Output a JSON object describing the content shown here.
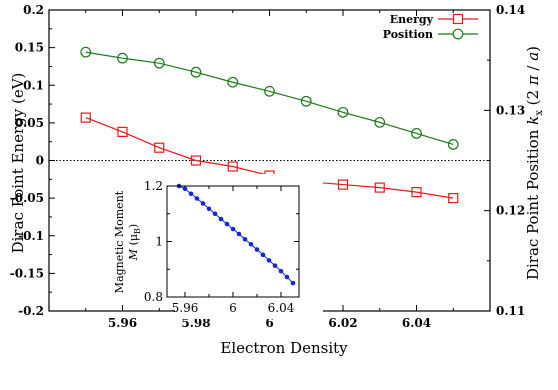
{
  "chart_data": [
    {
      "type": "line",
      "xlabel": "Electron Density",
      "ylabel": "Dirac Point Energy (eV)",
      "ylabel_right": "Dirac Point Position k_x (2 π / a)",
      "xlim": [
        5.94,
        6.06
      ],
      "ylim": [
        -0.2,
        0.2
      ],
      "ylim_right": [
        0.11,
        0.14
      ],
      "x_ticks": [
        "5.96",
        "5.98",
        "6",
        "6.02",
        "6.04"
      ],
      "y_ticks": [
        "0.2",
        "0.15",
        "0.1",
        "0.05",
        "0",
        "-0.05",
        "-0.1",
        "-0.15",
        "-0.2"
      ],
      "y_ticks_right": [
        "0.14",
        "0.13",
        "0.12",
        "0.11"
      ],
      "legend_position": "top-right",
      "zero_line": true,
      "x": [
        5.95,
        5.96,
        5.97,
        5.98,
        5.99,
        6.0,
        6.01,
        6.02,
        6.03,
        6.04,
        6.05
      ],
      "series": [
        {
          "name": "Energy",
          "axis": "left",
          "marker": "square",
          "color": "#e8191b",
          "values": [
            0.057,
            0.038,
            0.017,
            0.0,
            -0.008,
            -0.02,
            -0.028,
            -0.032,
            -0.036,
            -0.042,
            -0.05
          ]
        },
        {
          "name": "Position",
          "axis": "right",
          "marker": "circle",
          "color": "#1b7a1b",
          "values": [
            0.1358,
            0.1352,
            0.1347,
            0.1338,
            0.1328,
            0.1319,
            0.1309,
            0.1298,
            0.1288,
            0.1277,
            0.1266
          ]
        }
      ]
    },
    {
      "type": "line",
      "position": "inset",
      "ylabel_line1": "Magnetic Moment",
      "ylabel_line2": "M (μ_B)",
      "xlim": [
        5.945,
        6.055
      ],
      "ylim": [
        0.8,
        1.2
      ],
      "x_ticks": [
        "5.96",
        "6",
        "6.04"
      ],
      "y_ticks": [
        "1.2",
        "1",
        "0.8"
      ],
      "x": [
        5.955,
        5.96,
        5.965,
        5.97,
        5.975,
        5.98,
        5.985,
        5.99,
        5.995,
        6.0,
        6.005,
        6.01,
        6.015,
        6.02,
        6.025,
        6.03,
        6.035,
        6.04,
        6.045,
        6.05
      ],
      "series": [
        {
          "marker": "dot",
          "color": "#1428d0",
          "values": [
            1.2,
            1.19,
            1.172,
            1.155,
            1.137,
            1.118,
            1.1,
            1.081,
            1.063,
            1.045,
            1.027,
            1.008,
            0.99,
            0.971,
            0.952,
            0.932,
            0.913,
            0.893,
            0.872,
            0.85
          ]
        }
      ]
    }
  ]
}
